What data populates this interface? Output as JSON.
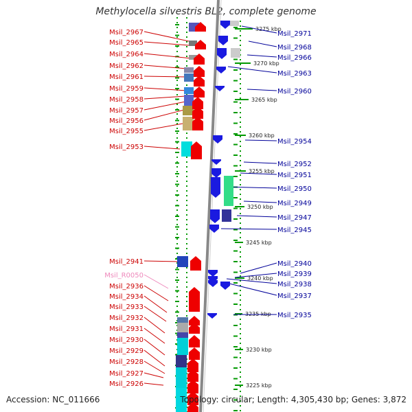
{
  "title": "Methylocella silvestris BL2, complete genome",
  "accession": "Accession: NC_011666",
  "topology": "Topology: circular; Length: 4,305,430 bp; Genes: 3,872",
  "colors": {
    "left_label": "#cc0000",
    "right_label": "#000099",
    "rna_label": "#ee88bb",
    "forward_arrow": "#ee0000",
    "reverse_arrow": "#1a1ae0",
    "ruler_tick": "#009900",
    "backbone": "#888888"
  },
  "ruler": {
    "labels": [
      "3275 kbp",
      "3270 kbp",
      "3265 kbp",
      "3260 kbp",
      "3255 kbp",
      "3250 kbp",
      "3245 kbp",
      "3240 kbp",
      "3235 kbp",
      "3230 kbp",
      "3225 kbp"
    ]
  },
  "left_labels": [
    "Msil_2967",
    "Msil_2965",
    "Msil_2964",
    "Msil_2962",
    "Msil_2961",
    "Msil_2959",
    "Msil_2958",
    "Msil_2957",
    "Msil_2956",
    "Msil_2955",
    "Msil_2953",
    "Msil_2941",
    "Msil_R0050",
    "Msil_2936",
    "Msil_2934",
    "Msil_2933",
    "Msil_2932",
    "Msil_2931",
    "Msil_2930",
    "Msil_2929",
    "Msil_2928",
    "Msil_2927",
    "Msil_2926"
  ],
  "right_labels": [
    "Msil_2971",
    "Msil_2968",
    "Msil_2966",
    "Msil_2963",
    "Msil_2960",
    "Msil_2954",
    "Msil_2952",
    "Msil_2951",
    "Msil_2950",
    "Msil_2949",
    "Msil_2947",
    "Msil_2945",
    "Msil_2940",
    "Msil_2939",
    "Msil_2938",
    "Msil_2937",
    "Msil_2935"
  ]
}
